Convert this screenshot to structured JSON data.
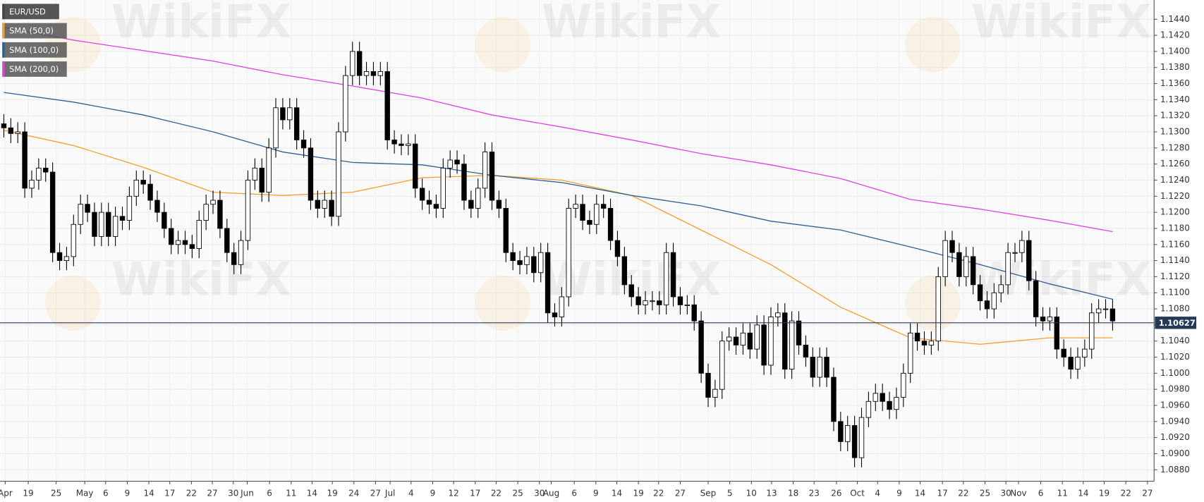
{
  "chart_data": {
    "type": "candlestick",
    "symbol": "EUR/USD",
    "watermark": "WikiFX",
    "xlim": [
      -0.55,
      164.95
    ],
    "ylim": [
      1.08657,
      1.14639
    ],
    "grid": true,
    "up_color": "#ffffff",
    "down_color": "#000000",
    "last_price": 1.10627,
    "last_price_color": "#22395a",
    "xticks": [
      {
        "value": 0.2,
        "label": "Apr"
      },
      {
        "value": 3.5,
        "label": "19"
      },
      {
        "value": 7.5,
        "label": "25"
      },
      {
        "value": 11.6,
        "label": "May"
      },
      {
        "value": 14.6,
        "label": "6"
      },
      {
        "value": 17.7,
        "label": "9"
      },
      {
        "value": 20.8,
        "label": "14"
      },
      {
        "value": 23.8,
        "label": "17"
      },
      {
        "value": 26.9,
        "label": "22"
      },
      {
        "value": 29.9,
        "label": "27"
      },
      {
        "value": 32.9,
        "label": "30"
      },
      {
        "value": 34.9,
        "label": "Jun"
      },
      {
        "value": 38.1,
        "label": "6"
      },
      {
        "value": 41.2,
        "label": "11"
      },
      {
        "value": 44.2,
        "label": "14"
      },
      {
        "value": 47.1,
        "label": "19"
      },
      {
        "value": 50.2,
        "label": "24"
      },
      {
        "value": 53.3,
        "label": "27"
      },
      {
        "value": 55.4,
        "label": "Jul"
      },
      {
        "value": 58.4,
        "label": "4"
      },
      {
        "value": 61.5,
        "label": "9"
      },
      {
        "value": 64.5,
        "label": "12"
      },
      {
        "value": 67.6,
        "label": "17"
      },
      {
        "value": 70.6,
        "label": "22"
      },
      {
        "value": 73.7,
        "label": "25"
      },
      {
        "value": 76.8,
        "label": "30"
      },
      {
        "value": 78.5,
        "label": "Aug"
      },
      {
        "value": 81.8,
        "label": "6"
      },
      {
        "value": 84.9,
        "label": "9"
      },
      {
        "value": 87.9,
        "label": "14"
      },
      {
        "value": 91.0,
        "label": "19"
      },
      {
        "value": 93.9,
        "label": "22"
      },
      {
        "value": 97.0,
        "label": "27"
      },
      {
        "value": 101.0,
        "label": "Sep"
      },
      {
        "value": 104.1,
        "label": "5"
      },
      {
        "value": 107.2,
        "label": "10"
      },
      {
        "value": 110.1,
        "label": "13"
      },
      {
        "value": 113.2,
        "label": "18"
      },
      {
        "value": 116.2,
        "label": "23"
      },
      {
        "value": 119.4,
        "label": "26"
      },
      {
        "value": 122.4,
        "label": "Oct"
      },
      {
        "value": 125.3,
        "label": "4"
      },
      {
        "value": 128.4,
        "label": "9"
      },
      {
        "value": 131.4,
        "label": "14"
      },
      {
        "value": 134.6,
        "label": "17"
      },
      {
        "value": 137.6,
        "label": "22"
      },
      {
        "value": 140.7,
        "label": "25"
      },
      {
        "value": 143.7,
        "label": "30"
      },
      {
        "value": 145.5,
        "label": "Nov"
      },
      {
        "value": 148.7,
        "label": "6"
      },
      {
        "value": 151.8,
        "label": "11"
      },
      {
        "value": 154.8,
        "label": "14"
      },
      {
        "value": 157.8,
        "label": "19"
      },
      {
        "value": 160.9,
        "label": "22"
      },
      {
        "value": 164.0,
        "label": "27"
      }
    ],
    "yticks": [
      {
        "value": 1.144,
        "label": "1.1440"
      },
      {
        "value": 1.142,
        "label": "1.1420"
      },
      {
        "value": 1.14,
        "label": "1.1400"
      },
      {
        "value": 1.138,
        "label": "1.1380"
      },
      {
        "value": 1.136,
        "label": "1.1360"
      },
      {
        "value": 1.134,
        "label": "1.1340"
      },
      {
        "value": 1.132,
        "label": "1.1320"
      },
      {
        "value": 1.13,
        "label": "1.1300"
      },
      {
        "value": 1.128,
        "label": "1.1280"
      },
      {
        "value": 1.126,
        "label": "1.1260"
      },
      {
        "value": 1.124,
        "label": "1.1240"
      },
      {
        "value": 1.122,
        "label": "1.1220"
      },
      {
        "value": 1.12,
        "label": "1.1200"
      },
      {
        "value": 1.118,
        "label": "1.1180"
      },
      {
        "value": 1.116,
        "label": "1.1160"
      },
      {
        "value": 1.114,
        "label": "1.1140"
      },
      {
        "value": 1.112,
        "label": "1.1120"
      },
      {
        "value": 1.11,
        "label": "1.1100"
      },
      {
        "value": 1.108,
        "label": "1.1080"
      },
      {
        "value": 1.106,
        "label": "1.1060"
      },
      {
        "value": 1.104,
        "label": "1.1040"
      },
      {
        "value": 1.102,
        "label": "1.1020"
      },
      {
        "value": 1.1,
        "label": "1.1000"
      },
      {
        "value": 1.098,
        "label": "1.0980"
      },
      {
        "value": 1.096,
        "label": "1.0960"
      },
      {
        "value": 1.094,
        "label": "1.0940"
      },
      {
        "value": 1.092,
        "label": "1.0920"
      },
      {
        "value": 1.09,
        "label": "1.0900"
      },
      {
        "value": 1.088,
        "label": "1.0880"
      }
    ],
    "candles": {
      "open": [
        1.131,
        1.1305,
        1.1298,
        1.13,
        1.123,
        1.124,
        1.1255,
        1.125,
        1.115,
        1.114,
        1.1145,
        1.1185,
        1.121,
        1.12,
        1.117,
        1.12,
        1.117,
        1.1195,
        1.119,
        1.122,
        1.124,
        1.1235,
        1.1215,
        1.12,
        1.118,
        1.116,
        1.1165,
        1.116,
        1.1155,
        1.119,
        1.121,
        1.1215,
        1.118,
        1.115,
        1.1135,
        1.1165,
        1.124,
        1.1255,
        1.1225,
        1.128,
        1.133,
        1.1315,
        1.133,
        1.129,
        1.128,
        1.1215,
        1.1205,
        1.1215,
        1.1195,
        1.13,
        1.137,
        1.14,
        1.137,
        1.1375,
        1.137,
        1.1375,
        1.129,
        1.1285,
        1.1283,
        1.1285,
        1.123,
        1.1215,
        1.121,
        1.1205,
        1.1255,
        1.1265,
        1.126,
        1.1215,
        1.1205,
        1.123,
        1.1275,
        1.1215,
        1.1205,
        1.115,
        1.114,
        1.1135,
        1.1145,
        1.1125,
        1.115,
        1.1075,
        1.107,
        1.1095,
        1.1205,
        1.121,
        1.119,
        1.1185,
        1.121,
        1.1205,
        1.1165,
        1.1145,
        1.111,
        1.1095,
        1.1085,
        1.109,
        1.109,
        1.1085,
        1.115,
        1.1095,
        1.1085,
        1.1085,
        1.1065,
        1.1,
        1.097,
        1.098,
        1.104,
        1.1045,
        1.1035,
        1.105,
        1.103,
        1.106,
        1.101,
        1.107,
        1.1075,
        1.1005,
        1.1065,
        1.1035,
        1.102,
        1.0995,
        1.102,
        1.0995,
        1.094,
        1.0915,
        1.0935,
        1.0895,
        1.0945,
        1.0965,
        1.0975,
        1.0965,
        1.0955,
        1.097,
        1.1,
        1.105,
        1.104,
        1.1035,
        1.104,
        1.112,
        1.1165,
        1.115,
        1.112,
        1.1145,
        1.111,
        1.109,
        1.108,
        1.11,
        1.111,
        1.115,
        1.115,
        1.1165,
        1.1115,
        1.107,
        1.1065,
        1.107,
        1.103,
        1.102,
        1.1005,
        1.102,
        1.103,
        1.1075,
        1.108,
        1.108
      ],
      "high": [
        1.1322,
        1.1317,
        1.1312,
        1.1312,
        1.1252,
        1.1267,
        1.1267,
        1.1262,
        1.1162,
        1.1157,
        1.1197,
        1.1222,
        1.1222,
        1.1212,
        1.1212,
        1.1212,
        1.1207,
        1.1207,
        1.1232,
        1.1252,
        1.1252,
        1.1247,
        1.1227,
        1.1212,
        1.1192,
        1.1177,
        1.1177,
        1.1172,
        1.1202,
        1.1222,
        1.1227,
        1.1227,
        1.1192,
        1.1162,
        1.1177,
        1.1252,
        1.1267,
        1.1267,
        1.1292,
        1.1342,
        1.1342,
        1.1342,
        1.1342,
        1.1302,
        1.1292,
        1.1227,
        1.1227,
        1.1227,
        1.1312,
        1.1382,
        1.1412,
        1.1412,
        1.1387,
        1.1387,
        1.1387,
        1.1387,
        1.1302,
        1.1297,
        1.1297,
        1.1297,
        1.1242,
        1.1227,
        1.1222,
        1.1267,
        1.1277,
        1.1277,
        1.1272,
        1.1227,
        1.1242,
        1.1287,
        1.1287,
        1.1227,
        1.1217,
        1.1162,
        1.1152,
        1.1157,
        1.1157,
        1.1162,
        1.1162,
        1.1087,
        1.1107,
        1.1217,
        1.1222,
        1.1222,
        1.1202,
        1.1222,
        1.1222,
        1.1217,
        1.1177,
        1.1157,
        1.1122,
        1.1107,
        1.1102,
        1.1102,
        1.1102,
        1.1162,
        1.1162,
        1.1107,
        1.1097,
        1.1097,
        1.1077,
        1.1012,
        1.0992,
        1.1052,
        1.1057,
        1.1057,
        1.1062,
        1.1062,
        1.1072,
        1.1072,
        1.1082,
        1.1087,
        1.1087,
        1.1077,
        1.1077,
        1.1047,
        1.1032,
        1.1032,
        1.1032,
        1.1007,
        1.0952,
        1.0947,
        1.0947,
        1.0957,
        1.0977,
        1.0987,
        1.0987,
        1.0977,
        1.0982,
        1.1012,
        1.1062,
        1.1062,
        1.1052,
        1.1052,
        1.1132,
        1.1177,
        1.1177,
        1.1162,
        1.1157,
        1.1157,
        1.1122,
        1.1102,
        1.1112,
        1.1122,
        1.1162,
        1.1162,
        1.1177,
        1.1177,
        1.1127,
        1.1082,
        1.1082,
        1.1082,
        1.1042,
        1.1032,
        1.1032,
        1.1042,
        1.1087,
        1.1092,
        1.1092,
        1.1092
      ],
      "low": [
        1.1293,
        1.1286,
        1.1286,
        1.1218,
        1.1218,
        1.1228,
        1.1238,
        1.1138,
        1.1128,
        1.1128,
        1.1133,
        1.1173,
        1.1188,
        1.1158,
        1.1158,
        1.1158,
        1.1158,
        1.1178,
        1.1178,
        1.1208,
        1.1223,
        1.1203,
        1.1188,
        1.1168,
        1.1148,
        1.1148,
        1.1148,
        1.1143,
        1.1143,
        1.1178,
        1.1198,
        1.1168,
        1.1138,
        1.1123,
        1.1123,
        1.1153,
        1.1228,
        1.1213,
        1.1213,
        1.1268,
        1.1303,
        1.1303,
        1.1278,
        1.1268,
        1.1203,
        1.1193,
        1.1193,
        1.1183,
        1.1183,
        1.1288,
        1.1358,
        1.1358,
        1.1358,
        1.1358,
        1.1358,
        1.1278,
        1.1273,
        1.1271,
        1.1271,
        1.1218,
        1.1203,
        1.1198,
        1.1193,
        1.1193,
        1.1243,
        1.1248,
        1.1203,
        1.1193,
        1.1193,
        1.1218,
        1.1203,
        1.1193,
        1.1138,
        1.1128,
        1.1123,
        1.1123,
        1.1113,
        1.1113,
        1.1063,
        1.1058,
        1.1058,
        1.1083,
        1.1193,
        1.1178,
        1.1173,
        1.1173,
        1.1193,
        1.1153,
        1.1133,
        1.1098,
        1.1083,
        1.1073,
        1.1073,
        1.1078,
        1.1073,
        1.1073,
        1.1083,
        1.1073,
        1.1073,
        1.1053,
        1.0988,
        1.0958,
        1.0958,
        1.0968,
        1.1028,
        1.1023,
        1.1023,
        1.1018,
        1.1018,
        1.0998,
        1.0998,
        1.1058,
        1.0993,
        1.0993,
        1.1023,
        1.1008,
        1.0983,
        1.0983,
        1.0983,
        1.0928,
        1.0903,
        1.0903,
        1.0883,
        1.0883,
        1.0933,
        1.0953,
        1.0953,
        1.0943,
        1.0943,
        1.0958,
        1.0988,
        1.1028,
        1.1023,
        1.1023,
        1.1028,
        1.1108,
        1.1138,
        1.1108,
        1.1108,
        1.1098,
        1.1078,
        1.1068,
        1.1068,
        1.1088,
        1.1098,
        1.1138,
        1.1138,
        1.1103,
        1.1058,
        1.1053,
        1.1053,
        1.1018,
        1.1008,
        1.0993,
        1.0993,
        1.1008,
        1.1018,
        1.1063,
        1.1068,
        1.1053
      ],
      "close": [
        1.1305,
        1.1298,
        1.13,
        1.123,
        1.124,
        1.1255,
        1.125,
        1.115,
        1.114,
        1.1145,
        1.1185,
        1.121,
        1.12,
        1.117,
        1.12,
        1.117,
        1.1195,
        1.119,
        1.122,
        1.124,
        1.1235,
        1.1215,
        1.12,
        1.118,
        1.116,
        1.1165,
        1.116,
        1.1155,
        1.119,
        1.121,
        1.1215,
        1.118,
        1.115,
        1.1135,
        1.1165,
        1.124,
        1.1255,
        1.1225,
        1.128,
        1.133,
        1.1315,
        1.133,
        1.129,
        1.128,
        1.1215,
        1.1205,
        1.1215,
        1.1195,
        1.13,
        1.137,
        1.14,
        1.137,
        1.1375,
        1.137,
        1.1375,
        1.129,
        1.1285,
        1.1283,
        1.1285,
        1.123,
        1.1215,
        1.121,
        1.1205,
        1.1255,
        1.1265,
        1.126,
        1.1215,
        1.1205,
        1.123,
        1.1275,
        1.1215,
        1.1205,
        1.115,
        1.114,
        1.1135,
        1.1145,
        1.1125,
        1.115,
        1.1075,
        1.107,
        1.1095,
        1.1205,
        1.121,
        1.119,
        1.1185,
        1.121,
        1.1205,
        1.1165,
        1.1145,
        1.111,
        1.1095,
        1.1085,
        1.109,
        1.109,
        1.1085,
        1.115,
        1.1095,
        1.1085,
        1.1085,
        1.1065,
        1.1,
        1.097,
        1.098,
        1.104,
        1.1045,
        1.1035,
        1.105,
        1.103,
        1.106,
        1.101,
        1.107,
        1.1075,
        1.1005,
        1.1065,
        1.1035,
        1.102,
        1.0995,
        1.102,
        1.0995,
        1.094,
        1.0915,
        1.0935,
        1.0895,
        1.0945,
        1.0965,
        1.0975,
        1.0965,
        1.0955,
        1.097,
        1.1,
        1.105,
        1.104,
        1.1035,
        1.104,
        1.112,
        1.1165,
        1.115,
        1.112,
        1.1145,
        1.111,
        1.109,
        1.108,
        1.11,
        1.111,
        1.115,
        1.115,
        1.1165,
        1.1115,
        1.107,
        1.1065,
        1.107,
        1.103,
        1.102,
        1.1005,
        1.102,
        1.103,
        1.1075,
        1.108,
        1.108,
        1.1065
      ]
    },
    "lines": {
      "x": [
        0,
        10,
        20,
        30,
        40,
        50,
        60,
        70,
        80,
        90,
        100,
        110,
        120,
        130,
        140,
        150,
        159
      ],
      "series": [
        {
          "name": "SMA (50,0)",
          "color": "#f0a030",
          "values": [
            1.1302,
            1.1283,
            1.1256,
            1.1225,
            1.1221,
            1.1225,
            1.1243,
            1.1246,
            1.124,
            1.1221,
            1.1178,
            1.1135,
            1.1082,
            1.1044,
            1.1036,
            1.1044,
            1.1044
          ]
        },
        {
          "name": "SMA (100,0)",
          "color": "#2e5f94",
          "values": [
            1.1349,
            1.1337,
            1.1321,
            1.13,
            1.1275,
            1.1262,
            1.1259,
            1.1246,
            1.1237,
            1.1221,
            1.1208,
            1.1189,
            1.1178,
            1.1157,
            1.1135,
            1.1111,
            1.1092
          ]
        },
        {
          "name": "SMA (200,0)",
          "color": "#e040e0",
          "values": [
            1.143,
            1.1414,
            1.1401,
            1.1388,
            1.1371,
            1.1357,
            1.1342,
            1.1321,
            1.1306,
            1.129,
            1.1273,
            1.1259,
            1.1242,
            1.1216,
            1.1204,
            1.119,
            1.1176
          ]
        }
      ]
    }
  }
}
